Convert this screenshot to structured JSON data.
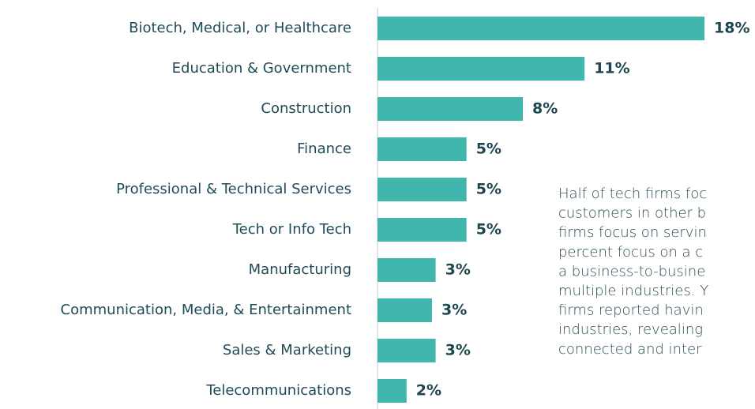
{
  "chart_data": {
    "type": "hbar",
    "categories": [
      "Biotech, Medical, or Healthcare",
      "Education & Government",
      "Construction",
      "Finance",
      "Professional & Technical Services",
      "Tech or Info Tech",
      "Manufacturing",
      "Communication, Media, & Entertainment",
      "Sales & Marketing",
      "Telecommunications"
    ],
    "values": [
      18,
      11.4,
      8,
      4.9,
      4.9,
      4.9,
      3.2,
      3.0,
      3.2,
      1.6
    ],
    "value_labels": [
      "18%",
      "11%",
      "8%",
      "5%",
      "5%",
      "5%",
      "3%",
      "3%",
      "3%",
      "2%"
    ],
    "color": "#41b6ad",
    "xlim": [
      0,
      20
    ],
    "annotation": [
      "Half of tech firms foc",
      "customers in other b",
      "firms focus on servin",
      "percent focus on a c",
      "a business-to-busine",
      "multiple industries. Y",
      "firms reported havin",
      "industries, revealing",
      "connected and inter"
    ]
  }
}
